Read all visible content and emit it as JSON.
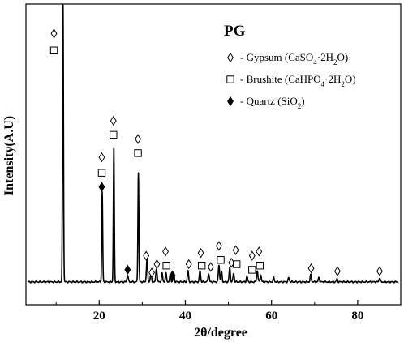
{
  "chart_data": {
    "type": "line",
    "title": "PG",
    "xlabel": "2θ/degree",
    "ylabel": "Intensity(A.U)",
    "xlim": [
      3,
      90
    ],
    "ylim": [
      0,
      100
    ],
    "x_ticks": [
      20,
      40,
      60,
      80
    ],
    "y_ticks_shown": false,
    "legend": {
      "placement": "top-right",
      "entries": [
        {
          "marker": "diamond-open",
          "label": "Gypsum",
          "formula_main": "CaSO",
          "formula_sub": "4",
          "formula_rest": "·2H",
          "formula_sub2": "2",
          "formula_end": "O)"
        },
        {
          "marker": "square-open",
          "label": "Brushite",
          "formula_main": "CaHPO",
          "formula_sub": "4",
          "formula_rest": "·2H",
          "formula_sub2": "2",
          "formula_end": "O)"
        },
        {
          "marker": "diamond-filled",
          "label": "Quartz",
          "formula_main": "SiO",
          "formula_sub": "2",
          "formula_rest": "",
          "formula_sub2": "",
          "formula_end": ")"
        }
      ]
    },
    "baseline": 1.2,
    "peaks": [
      {
        "x": 11.6,
        "y": 100
      },
      {
        "x": 20.7,
        "y": 32
      },
      {
        "x": 23.4,
        "y": 48
      },
      {
        "x": 26.6,
        "y": 2.5
      },
      {
        "x": 29.1,
        "y": 39
      },
      {
        "x": 31.1,
        "y": 8
      },
      {
        "x": 32.0,
        "y": 3
      },
      {
        "x": 33.3,
        "y": 5
      },
      {
        "x": 34.6,
        "y": 3
      },
      {
        "x": 35.5,
        "y": 3
      },
      {
        "x": 36.5,
        "y": 2.5
      },
      {
        "x": 37.3,
        "y": 3
      },
      {
        "x": 40.6,
        "y": 4
      },
      {
        "x": 43.4,
        "y": 4
      },
      {
        "x": 45.4,
        "y": 3
      },
      {
        "x": 47.8,
        "y": 6
      },
      {
        "x": 48.4,
        "y": 3.5
      },
      {
        "x": 50.3,
        "y": 5
      },
      {
        "x": 51.2,
        "y": 3
      },
      {
        "x": 54.3,
        "y": 2
      },
      {
        "x": 56.7,
        "y": 4
      },
      {
        "x": 57.5,
        "y": 2.5
      },
      {
        "x": 60.5,
        "y": 1.5
      },
      {
        "x": 64.0,
        "y": 1.5
      },
      {
        "x": 69.1,
        "y": 2.5
      },
      {
        "x": 71.0,
        "y": 1.5
      },
      {
        "x": 75.2,
        "y": 1
      },
      {
        "x": 85.1,
        "y": 1.5
      }
    ],
    "phase_markers": [
      {
        "x": 9.5,
        "y": 89.5,
        "symbol": "diamond-open"
      },
      {
        "x": 9.5,
        "y": 83.5,
        "symbol": "square-open"
      },
      {
        "x": 20.6,
        "y": 45.5,
        "symbol": "diamond-open"
      },
      {
        "x": 20.6,
        "y": 40,
        "symbol": "square-open"
      },
      {
        "x": 20.6,
        "y": 35,
        "symbol": "diamond-filled"
      },
      {
        "x": 23.3,
        "y": 58.5,
        "symbol": "diamond-open"
      },
      {
        "x": 23.3,
        "y": 53.5,
        "symbol": "square-open"
      },
      {
        "x": 29.0,
        "y": 52,
        "symbol": "diamond-open"
      },
      {
        "x": 29.0,
        "y": 47,
        "symbol": "square-open"
      },
      {
        "x": 26.6,
        "y": 5.5,
        "symbol": "diamond-filled"
      },
      {
        "x": 30.9,
        "y": 10.5,
        "symbol": "diamond-open"
      },
      {
        "x": 32.2,
        "y": 4.5,
        "symbol": "diamond-open"
      },
      {
        "x": 33.4,
        "y": 7.5,
        "symbol": "diamond-open"
      },
      {
        "x": 35.4,
        "y": 12,
        "symbol": "diamond-open"
      },
      {
        "x": 35.6,
        "y": 7,
        "symbol": "square-open"
      },
      {
        "x": 37.0,
        "y": 3.5,
        "symbol": "diamond-filled"
      },
      {
        "x": 40.8,
        "y": 7.5,
        "symbol": "diamond-open"
      },
      {
        "x": 43.6,
        "y": 11.5,
        "symbol": "diamond-open"
      },
      {
        "x": 43.8,
        "y": 7,
        "symbol": "square-open"
      },
      {
        "x": 45.9,
        "y": 6.5,
        "symbol": "diamond-open"
      },
      {
        "x": 47.8,
        "y": 14,
        "symbol": "diamond-open"
      },
      {
        "x": 48.2,
        "y": 9,
        "symbol": "square-open"
      },
      {
        "x": 50.7,
        "y": 8,
        "symbol": "diamond-open"
      },
      {
        "x": 51.7,
        "y": 12.5,
        "symbol": "diamond-open"
      },
      {
        "x": 51.9,
        "y": 7.5,
        "symbol": "square-open"
      },
      {
        "x": 55.5,
        "y": 10.5,
        "symbol": "diamond-open"
      },
      {
        "x": 55.5,
        "y": 5.5,
        "symbol": "square-open"
      },
      {
        "x": 57.1,
        "y": 12,
        "symbol": "diamond-open"
      },
      {
        "x": 57.3,
        "y": 7,
        "symbol": "square-open"
      },
      {
        "x": 69.2,
        "y": 6,
        "symbol": "diamond-open"
      },
      {
        "x": 75.3,
        "y": 5,
        "symbol": "diamond-open"
      },
      {
        "x": 85.1,
        "y": 5,
        "symbol": "diamond-open"
      }
    ]
  }
}
